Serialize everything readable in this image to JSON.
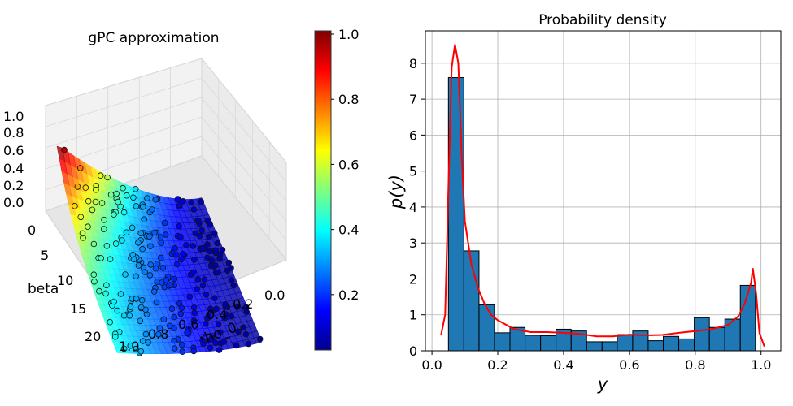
{
  "chart_data": [
    {
      "type": "surface3d",
      "title": "gPC approximation",
      "xlabel": "rho_0",
      "ylabel": "beta",
      "zlabel": "",
      "x_ticks": [
        "0.0",
        "0.2",
        "0.4",
        "0.6",
        "0.8",
        "1.0"
      ],
      "y_ticks": [
        "0",
        "5",
        "10",
        "15",
        "20"
      ],
      "z_ticks": [
        "0.0",
        "0.2",
        "0.4",
        "0.6",
        "0.8",
        "1.0"
      ],
      "colormap": "jet",
      "colorbar": {
        "ticks": [
          "0.2",
          "0.4",
          "0.6",
          "0.8",
          "1.0"
        ],
        "vmin": 0.03,
        "vmax": 1.01
      },
      "sample_points": "black-edged scatter points lying on the surface",
      "grid": true
    },
    {
      "type": "bar",
      "title": "Probability density",
      "xlabel": "y",
      "ylabel": "p(y)",
      "xlim": [
        -0.02,
        1.06
      ],
      "ylim": [
        0,
        8.9
      ],
      "x_ticks": [
        "0.0",
        "0.2",
        "0.4",
        "0.6",
        "0.8",
        "1.0"
      ],
      "y_ticks": [
        "0",
        "1",
        "2",
        "3",
        "4",
        "5",
        "6",
        "7",
        "8"
      ],
      "grid": true,
      "bar_color": "#1f77b4",
      "bins": [
        {
          "x0": 0.05,
          "x1": 0.097,
          "h": 7.6
        },
        {
          "x0": 0.097,
          "x1": 0.143,
          "h": 2.78
        },
        {
          "x0": 0.143,
          "x1": 0.19,
          "h": 1.28
        },
        {
          "x0": 0.19,
          "x1": 0.237,
          "h": 0.5
        },
        {
          "x0": 0.237,
          "x1": 0.283,
          "h": 0.65
        },
        {
          "x0": 0.283,
          "x1": 0.33,
          "h": 0.43
        },
        {
          "x0": 0.33,
          "x1": 0.377,
          "h": 0.42
        },
        {
          "x0": 0.377,
          "x1": 0.423,
          "h": 0.6
        },
        {
          "x0": 0.423,
          "x1": 0.47,
          "h": 0.55
        },
        {
          "x0": 0.47,
          "x1": 0.517,
          "h": 0.25
        },
        {
          "x0": 0.517,
          "x1": 0.563,
          "h": 0.25
        },
        {
          "x0": 0.563,
          "x1": 0.61,
          "h": 0.45
        },
        {
          "x0": 0.61,
          "x1": 0.657,
          "h": 0.55
        },
        {
          "x0": 0.657,
          "x1": 0.703,
          "h": 0.28
        },
        {
          "x0": 0.703,
          "x1": 0.75,
          "h": 0.4
        },
        {
          "x0": 0.75,
          "x1": 0.797,
          "h": 0.33
        },
        {
          "x0": 0.797,
          "x1": 0.843,
          "h": 0.92
        },
        {
          "x0": 0.843,
          "x1": 0.89,
          "h": 0.65
        },
        {
          "x0": 0.89,
          "x1": 0.937,
          "h": 0.88
        },
        {
          "x0": 0.937,
          "x1": 0.983,
          "h": 1.82
        }
      ],
      "kde": {
        "color": "#ff0000",
        "x": [
          0.028,
          0.04,
          0.05,
          0.06,
          0.07,
          0.08,
          0.09,
          0.1,
          0.12,
          0.14,
          0.16,
          0.18,
          0.2,
          0.25,
          0.3,
          0.35,
          0.4,
          0.45,
          0.5,
          0.55,
          0.6,
          0.65,
          0.7,
          0.75,
          0.8,
          0.85,
          0.9,
          0.93,
          0.95,
          0.97,
          0.975,
          0.985,
          0.995,
          1.01
        ],
        "y": [
          0.45,
          1.0,
          4.5,
          7.9,
          8.52,
          8.0,
          5.5,
          3.6,
          2.4,
          1.75,
          1.3,
          1.0,
          0.85,
          0.6,
          0.52,
          0.52,
          0.5,
          0.47,
          0.4,
          0.4,
          0.45,
          0.43,
          0.44,
          0.5,
          0.55,
          0.6,
          0.72,
          0.95,
          1.3,
          1.9,
          2.3,
          1.6,
          0.5,
          0.12
        ]
      }
    }
  ]
}
